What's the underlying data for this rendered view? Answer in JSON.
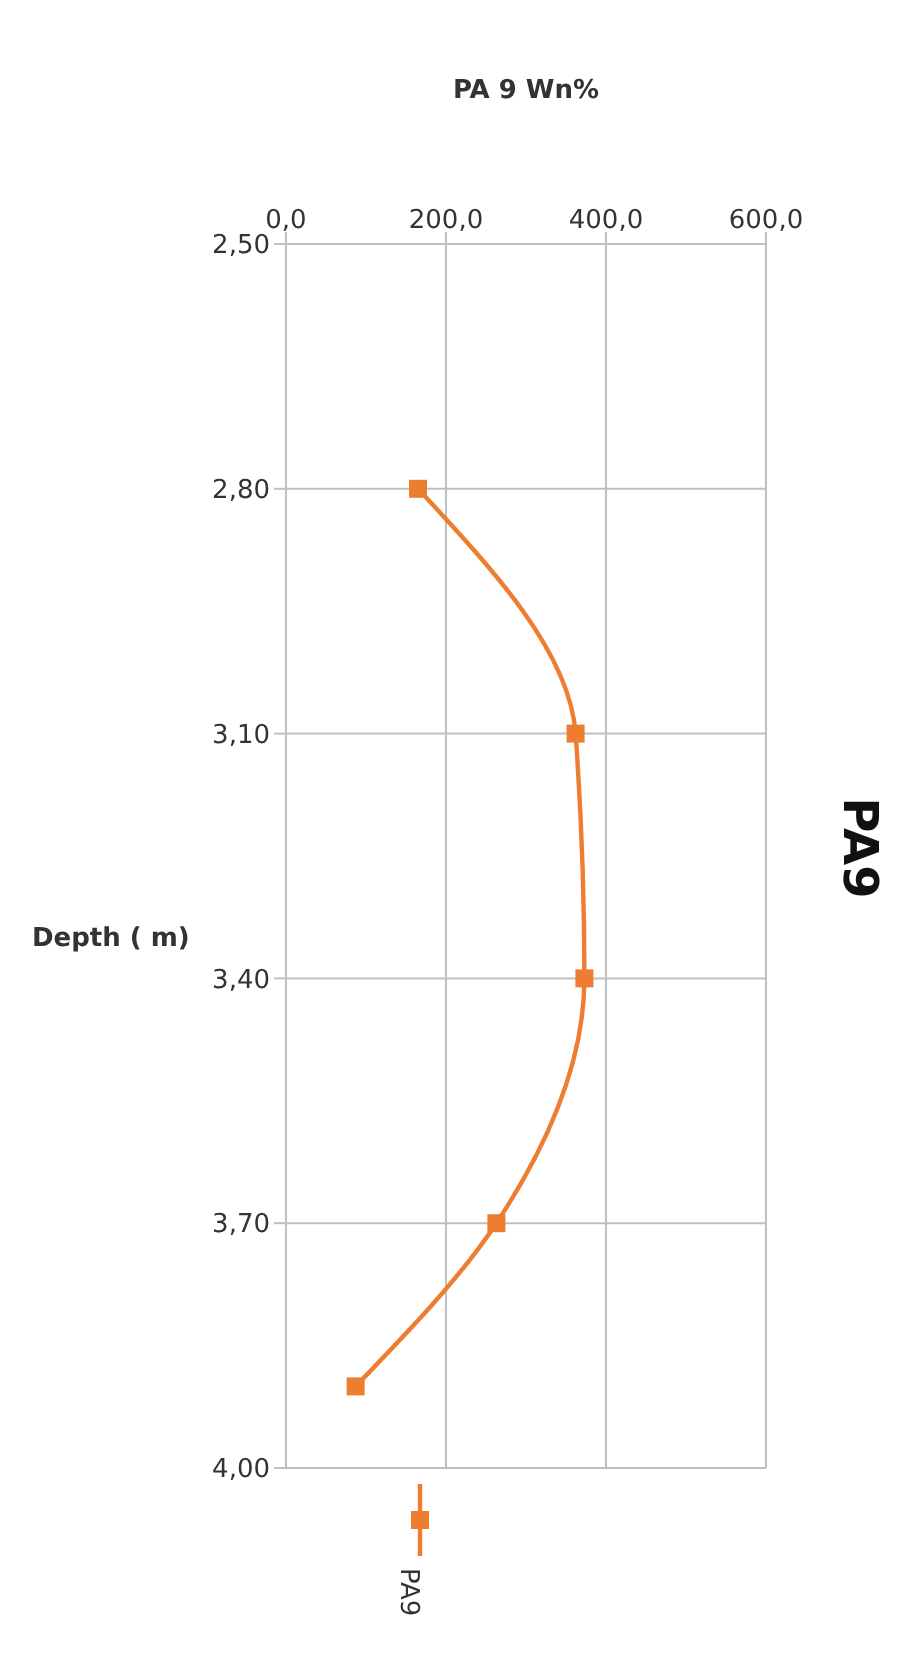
{
  "chart_data": {
    "type": "line",
    "title": "PA9",
    "xlabel": "PA 9 Wn%",
    "ylabel": "Depth ( m)",
    "series": [
      {
        "name": "PA9",
        "color": "#ed7d31",
        "x": [
          165,
          362,
          373,
          263,
          87
        ],
        "values": [
          2.8,
          3.1,
          3.4,
          3.7,
          3.9
        ]
      }
    ],
    "xlim": [
      0,
      600
    ],
    "xticks": [
      {
        "value": 0,
        "label": "0,0"
      },
      {
        "value": 200,
        "label": "200,0"
      },
      {
        "value": 400,
        "label": "400,0"
      },
      {
        "value": 600,
        "label": "600,0"
      }
    ],
    "ylim": [
      4.0,
      2.5
    ],
    "yticks": [
      {
        "value": 2.5,
        "label": "2,50"
      },
      {
        "value": 2.8,
        "label": "2,80"
      },
      {
        "value": 3.1,
        "label": "3,10"
      },
      {
        "value": 3.4,
        "label": "3,40"
      },
      {
        "value": 3.7,
        "label": "3,70"
      },
      {
        "value": 4.0,
        "label": "4,00"
      }
    ],
    "grid": true,
    "legend": "bottom",
    "marker": "square",
    "line_style": "solid"
  }
}
